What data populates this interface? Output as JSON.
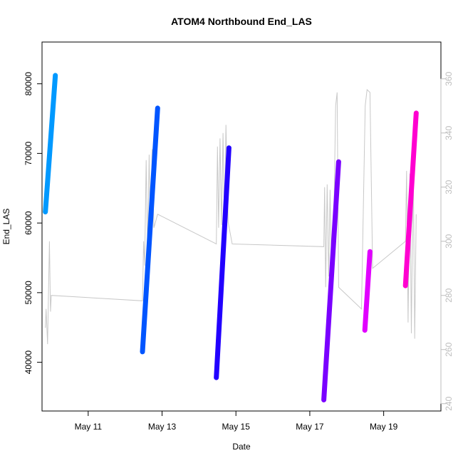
{
  "chart_data": {
    "type": "line",
    "title": "ATOM4 Northbound End_LAS",
    "xlabel": "Date",
    "ylabel": "End_LAS",
    "x_range_days": [
      9.75,
      20.55
    ],
    "ylim": [
      33000,
      86000
    ],
    "y2lim": [
      237.3,
      373.6
    ],
    "x_ticks": [
      {
        "day": 11,
        "label": "May 11"
      },
      {
        "day": 13,
        "label": "May 13"
      },
      {
        "day": 15,
        "label": "May 15"
      },
      {
        "day": 17,
        "label": "May 17"
      },
      {
        "day": 19,
        "label": "May 19"
      }
    ],
    "y_ticks": [
      40000,
      50000,
      60000,
      70000,
      80000
    ],
    "y2_ticks": [
      240,
      260,
      280,
      300,
      320,
      340,
      360
    ],
    "colors": {
      "right_axis": "#bdbdbd",
      "secondary_line": "#c8c8c8"
    },
    "series": [
      {
        "color": "#0099ff",
        "points": [
          [
            9.84,
            61600
          ],
          [
            10.11,
            81200
          ]
        ]
      },
      {
        "color": "#0055ff",
        "points": [
          [
            12.47,
            41500
          ],
          [
            12.88,
            76500
          ]
        ]
      },
      {
        "color": "#2200ff",
        "points": [
          [
            14.47,
            37800
          ],
          [
            14.81,
            70800
          ]
        ]
      },
      {
        "color": "#7a00ff",
        "points": [
          [
            17.38,
            34600
          ],
          [
            17.78,
            68800
          ]
        ]
      },
      {
        "color": "#e100ff",
        "points": [
          [
            18.49,
            44600
          ],
          [
            18.63,
            55900
          ]
        ]
      },
      {
        "color": "#ff00d0",
        "points": [
          [
            19.59,
            51000
          ],
          [
            19.88,
            75800
          ]
        ]
      }
    ],
    "secondary_series": [
      [
        9.84,
        268
      ],
      [
        9.86,
        275
      ],
      [
        9.9,
        262
      ],
      [
        9.95,
        300
      ],
      [
        9.98,
        274
      ],
      [
        10.0,
        280
      ],
      [
        12.47,
        278
      ],
      [
        12.5,
        300
      ],
      [
        12.53,
        291
      ],
      [
        12.57,
        330
      ],
      [
        12.61,
        296
      ],
      [
        12.65,
        332
      ],
      [
        12.69,
        299
      ],
      [
        12.73,
        334
      ],
      [
        12.78,
        305
      ],
      [
        12.88,
        310
      ],
      [
        14.47,
        299
      ],
      [
        14.5,
        335
      ],
      [
        14.53,
        305
      ],
      [
        14.57,
        338
      ],
      [
        14.61,
        306
      ],
      [
        14.65,
        340
      ],
      [
        14.69,
        306
      ],
      [
        14.73,
        343
      ],
      [
        14.79,
        307
      ],
      [
        14.9,
        299
      ],
      [
        17.38,
        298
      ],
      [
        17.4,
        320
      ],
      [
        17.43,
        283
      ],
      [
        17.47,
        321
      ],
      [
        17.51,
        287
      ],
      [
        17.55,
        319
      ],
      [
        17.6,
        280
      ],
      [
        17.66,
        315
      ],
      [
        17.7,
        350
      ],
      [
        17.74,
        355
      ],
      [
        17.78,
        283
      ],
      [
        18.4,
        275
      ],
      [
        18.5,
        350
      ],
      [
        18.55,
        356
      ],
      [
        18.63,
        355
      ],
      [
        18.7,
        290
      ],
      [
        19.59,
        300
      ],
      [
        19.62,
        326
      ],
      [
        19.66,
        270
      ],
      [
        19.71,
        325
      ],
      [
        19.75,
        266
      ],
      [
        19.8,
        330
      ],
      [
        19.84,
        264
      ],
      [
        19.88,
        310
      ]
    ]
  }
}
